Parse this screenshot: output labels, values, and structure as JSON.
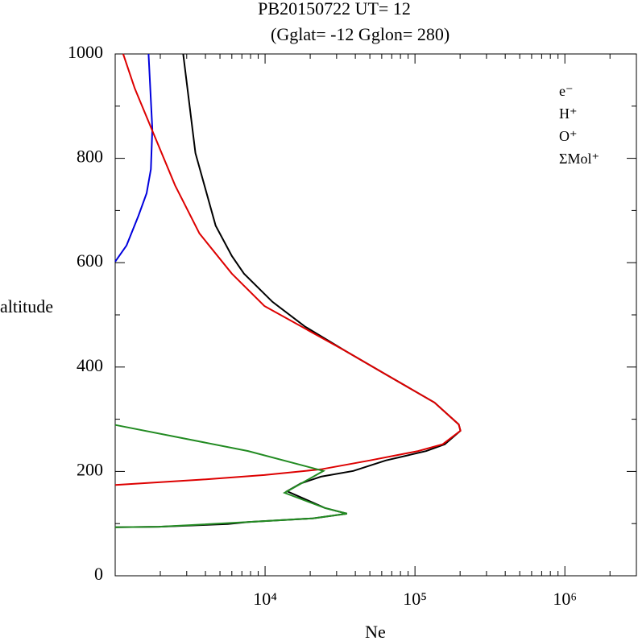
{
  "chart_data": {
    "type": "line",
    "title": "PB20150722   UT=  12",
    "subtitle": "(Gglat= -12   Gglon=  280)",
    "x_label": "Ne",
    "y_label": "altitude",
    "log_x": true,
    "xlim": [
      1000,
      3000000
    ],
    "ylim": [
      0,
      1000
    ],
    "xticks": [
      {
        "value": 10000,
        "label": "10⁴"
      },
      {
        "value": 100000,
        "label": "10⁵"
      },
      {
        "value": 1000000,
        "label": "10⁶"
      }
    ],
    "xminorticks": [
      2000,
      3000,
      4000,
      5000,
      6000,
      7000,
      8000,
      9000,
      20000,
      30000,
      40000,
      50000,
      60000,
      70000,
      80000,
      90000,
      200000,
      300000,
      400000,
      500000,
      600000,
      700000,
      800000,
      900000,
      2000000,
      3000000
    ],
    "yticks": [
      0,
      200,
      400,
      600,
      800,
      1000
    ],
    "yminorticks": [
      100,
      300,
      500,
      700,
      900
    ],
    "legend": "upper right",
    "series": [
      {
        "name": "e⁻",
        "color": "#000000",
        "x": [
          1000,
          1960,
          5640,
          7700,
          11900,
          20800,
          35200,
          25100,
          18400,
          14000,
          17300,
          23600,
          38800,
          63800,
          119000,
          158000,
          201000,
          196000,
          135000,
          63800,
          34300,
          18400,
          11200,
          7230,
          6000,
          4680,
          3430,
          2840
        ],
        "y": [
          93,
          94,
          99,
          103,
          106,
          110,
          119,
          130,
          147,
          162,
          177,
          190,
          201,
          221,
          239,
          252,
          278,
          290,
          332,
          386,
          431,
          478,
          525,
          579,
          613,
          671,
          810,
          1000
        ]
      },
      {
        "name": "H⁺",
        "color": "#0000dd",
        "x": [
          1000,
          1190,
          1430,
          1620,
          1730,
          1770,
          1670
        ],
        "y": [
          602,
          633,
          690,
          733,
          779,
          856,
          1000
        ]
      },
      {
        "name": "O⁺",
        "color": "#dd0000",
        "x": [
          1000,
          3650,
          9890,
          23600,
          49800,
          105000,
          153000,
          201000,
          196000,
          135000,
          63800,
          34300,
          18400,
          9890,
          6000,
          3650,
          2510,
          1840,
          1350,
          1130
        ],
        "y": [
          174,
          184,
          193,
          204,
          221,
          239,
          252,
          278,
          290,
          332,
          386,
          431,
          474,
          517,
          579,
          656,
          748,
          841,
          934,
          1000
        ]
      },
      {
        "name": "ΣMol⁺",
        "color": "#228b22",
        "x": [
          1000,
          7700,
          24500,
          13500,
          25100,
          35200,
          20800,
          7700,
          1960,
          1000
        ],
        "y": [
          289,
          239,
          201,
          159,
          130,
          119,
          110,
          103,
          94,
          93
        ]
      }
    ]
  }
}
